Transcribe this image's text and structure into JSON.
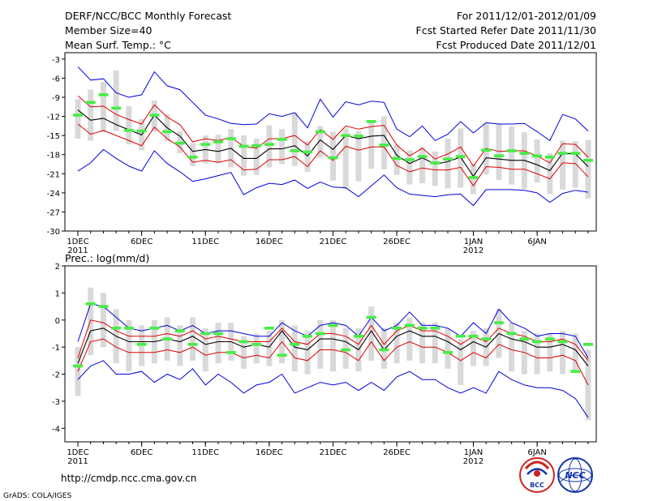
{
  "header": {
    "title": "DERF/NCC/BCC Monthly Forecast",
    "member_size": "Member Size=40",
    "variable": "Mean Surf. Temp.: °C",
    "period": "For 2011/12/01-2012/01/09",
    "fcst_started": "Fcst Started Refer Date 2011/11/30",
    "fcst_produced": "Fcst Produced Date 2011/12/01"
  },
  "footer": {
    "url": "http://cmdp.ncc.cma.gov.cn",
    "grads": "GrADS: COLA/IGES",
    "logo1_text": "BCC",
    "logo2_text": "NCC"
  },
  "colors": {
    "envelope": "#0000dd",
    "spread": "#dd0000",
    "mean": "#000000",
    "member_box": "#d9d9d9",
    "observed": "#44ee44"
  },
  "chart_data": [
    {
      "type": "line",
      "title": "Mean Surf. Temp.: °C",
      "xlabel": "",
      "ylabel": "",
      "ylim": [
        -30,
        -2
      ],
      "yticks": [
        -3,
        -6,
        -9,
        -12,
        -15,
        -18,
        -21,
        -24,
        -27,
        -30
      ],
      "yticklabels": [
        "-3",
        "-6",
        "-9",
        "-12",
        "-15",
        "-18",
        "-21",
        "-24",
        "-27",
        "-30"
      ],
      "x_days": 40,
      "xticks": [
        {
          "day": 1,
          "label": "1DEC",
          "sublabel": "2011"
        },
        {
          "day": 6,
          "label": "6DEC",
          "sublabel": ""
        },
        {
          "day": 11,
          "label": "11DEC",
          "sublabel": ""
        },
        {
          "day": 16,
          "label": "16DEC",
          "sublabel": ""
        },
        {
          "day": 21,
          "label": "21DEC",
          "sublabel": ""
        },
        {
          "day": 26,
          "label": "26DEC",
          "sublabel": ""
        },
        {
          "day": 32,
          "label": "1JAN",
          "sublabel": "2012"
        },
        {
          "day": 37,
          "label": "6JAN",
          "sublabel": ""
        }
      ],
      "series": [
        {
          "name": "max",
          "color": "#0000dd",
          "values": [
            -4.2,
            -6.3,
            -6.1,
            -8.3,
            -9.0,
            -8.6,
            -5.0,
            -7.2,
            -7.8,
            -9.8,
            -11.8,
            -12.4,
            -13.1,
            -13.3,
            -13.2,
            -11.6,
            -12.0,
            -11.4,
            -13.8,
            -9.3,
            -12.1,
            -9.7,
            -10.2,
            -9.6,
            -9.8,
            -14.0,
            -15.2,
            -13.5,
            -15.8,
            -14.8,
            -12.8,
            -14.6,
            -13.0,
            -13.2,
            -13.2,
            -13.1,
            -14.4,
            -15.8,
            -11.7,
            -12.4,
            -14.3
          ]
        },
        {
          "name": "upper",
          "color": "#dd0000",
          "values": [
            -8.8,
            -10.5,
            -10.4,
            -11.7,
            -12.5,
            -13.2,
            -10.2,
            -12.1,
            -13.3,
            -16.0,
            -15.5,
            -15.8,
            -15.3,
            -16.7,
            -17.0,
            -15.5,
            -15.5,
            -15.0,
            -16.5,
            -14.1,
            -15.6,
            -13.5,
            -14.0,
            -13.6,
            -13.4,
            -16.5,
            -18.2,
            -17.0,
            -18.7,
            -17.9,
            -16.8,
            -19.8,
            -17.0,
            -17.5,
            -17.4,
            -17.4,
            -18.2,
            -19.3,
            -16.3,
            -16.4,
            -18.4
          ]
        },
        {
          "name": "mean",
          "color": "#000000",
          "values": [
            -11.0,
            -12.6,
            -12.3,
            -13.3,
            -14.1,
            -14.9,
            -11.8,
            -13.8,
            -15.1,
            -17.5,
            -17.2,
            -17.5,
            -17.0,
            -18.6,
            -18.6,
            -17.1,
            -17.1,
            -16.6,
            -18.2,
            -15.7,
            -17.2,
            -15.0,
            -15.5,
            -15.1,
            -15.0,
            -18.1,
            -19.4,
            -18.5,
            -19.5,
            -19.1,
            -18.4,
            -21.4,
            -18.5,
            -18.7,
            -18.9,
            -18.9,
            -19.6,
            -20.5,
            -17.8,
            -17.9,
            -19.9
          ]
        },
        {
          "name": "lower",
          "color": "#dd0000",
          "values": [
            -13.2,
            -14.8,
            -14.2,
            -15.0,
            -15.8,
            -16.6,
            -13.7,
            -15.5,
            -16.8,
            -19.2,
            -18.9,
            -19.2,
            -18.8,
            -20.4,
            -20.3,
            -18.8,
            -18.8,
            -18.3,
            -19.9,
            -17.4,
            -18.9,
            -16.7,
            -17.3,
            -16.8,
            -16.8,
            -19.7,
            -20.7,
            -20.1,
            -20.4,
            -20.4,
            -20.0,
            -22.9,
            -19.9,
            -20.0,
            -20.3,
            -20.3,
            -21.0,
            -21.8,
            -19.3,
            -19.4,
            -21.5
          ]
        },
        {
          "name": "min",
          "color": "#0000dd",
          "values": [
            -20.6,
            -19.3,
            -17.2,
            -18.6,
            -19.8,
            -20.6,
            -17.4,
            -19.4,
            -20.7,
            -22.2,
            -21.8,
            -21.3,
            -20.8,
            -24.3,
            -23.2,
            -22.5,
            -22.7,
            -22.0,
            -23.3,
            -22.3,
            -23.1,
            -23.2,
            -24.6,
            -22.9,
            -21.2,
            -23.2,
            -24.2,
            -24.4,
            -24.6,
            -24.3,
            -24.2,
            -26.0,
            -23.5,
            -23.5,
            -23.5,
            -23.6,
            -24.0,
            -25.5,
            -24.1,
            -23.6,
            -23.9
          ]
        }
      ],
      "boxes": [
        [
          -15.5,
          -9.3
        ],
        [
          -15.8,
          -7.8
        ],
        [
          -14.5,
          -6.6
        ],
        [
          -14.3,
          -4.8
        ],
        [
          -16.4,
          -10.4
        ],
        [
          -17.3,
          -12.4
        ],
        [
          -14.4,
          -9.5
        ],
        [
          -15.9,
          -11.7
        ],
        [
          -17.8,
          -14.3
        ],
        [
          -19.8,
          -16.2
        ],
        [
          -19.4,
          -15.0
        ],
        [
          -19.4,
          -14.9
        ],
        [
          -20.0,
          -14.0
        ],
        [
          -21.3,
          -15.0
        ],
        [
          -21.2,
          -15.5
        ],
        [
          -20.0,
          -13.4
        ],
        [
          -19.5,
          -14.0
        ],
        [
          -19.8,
          -11.4
        ],
        [
          -20.7,
          -15.9
        ],
        [
          -18.5,
          -13.5
        ],
        [
          -22.1,
          -14.4
        ],
        [
          -23.4,
          -13.9
        ],
        [
          -22.2,
          -14.3
        ],
        [
          -20.2,
          -12.8
        ],
        [
          -20.3,
          -12.0
        ],
        [
          -21.2,
          -16.4
        ],
        [
          -22.7,
          -17.3
        ],
        [
          -22.5,
          -16.8
        ],
        [
          -22.9,
          -17.5
        ],
        [
          -23.3,
          -15.5
        ],
        [
          -23.2,
          -13.9
        ],
        [
          -24.2,
          -19.5
        ],
        [
          -21.1,
          -13.1
        ],
        [
          -22.0,
          -13.1
        ],
        [
          -22.7,
          -13.6
        ],
        [
          -23.4,
          -14.5
        ],
        [
          -22.4,
          -15.6
        ],
        [
          -24.2,
          -17.8
        ],
        [
          -23.5,
          -15.8
        ],
        [
          -23.2,
          -15.9
        ],
        [
          -24.9,
          -15.7
        ]
      ],
      "observed": [
        -11.8,
        -9.8,
        -8.6,
        -10.7,
        -14.2,
        -14.3,
        -11.8,
        -14.4,
        -16.2,
        -18.4,
        -16.4,
        -16.0,
        -15.5,
        -16.7,
        -16.6,
        -16.4,
        -15.6,
        -17.4,
        -17.6,
        -14.4,
        -18.5,
        -15.0,
        -15.1,
        -12.8,
        -16.5,
        -18.6,
        -18.8,
        -18.3,
        -19.3,
        -18.7,
        -18.3,
        -21.6,
        -17.3,
        -18.2,
        -17.4,
        -17.8,
        -18.2,
        -18.4,
        -17.8,
        -17.8,
        -18.9
      ]
    },
    {
      "type": "line",
      "title": "Prec.: log(mm/d)",
      "xlabel": "",
      "ylabel": "",
      "ylim": [
        -4.5,
        2
      ],
      "yticks": [
        2,
        1,
        0,
        -1,
        -2,
        -3,
        -4
      ],
      "yticklabels": [
        "2",
        "1",
        "0",
        "-1",
        "-2",
        "-3",
        "-4"
      ],
      "x_days": 40,
      "xticks": [
        {
          "day": 1,
          "label": "1DEC",
          "sublabel": "2011"
        },
        {
          "day": 6,
          "label": "6DEC",
          "sublabel": ""
        },
        {
          "day": 11,
          "label": "11DEC",
          "sublabel": ""
        },
        {
          "day": 16,
          "label": "16DEC",
          "sublabel": ""
        },
        {
          "day": 21,
          "label": "21DEC",
          "sublabel": ""
        },
        {
          "day": 26,
          "label": "26DEC",
          "sublabel": ""
        },
        {
          "day": 32,
          "label": "1JAN",
          "sublabel": "2012"
        },
        {
          "day": 37,
          "label": "6JAN",
          "sublabel": ""
        }
      ],
      "series": [
        {
          "name": "max",
          "color": "#0000dd",
          "values": [
            -0.8,
            0.6,
            0.5,
            0.1,
            -0.3,
            -0.4,
            -0.3,
            -0.2,
            -0.4,
            -0.2,
            -0.5,
            -0.4,
            -0.4,
            -0.5,
            -0.6,
            -0.6,
            -0.1,
            -0.4,
            -0.6,
            -0.2,
            -0.1,
            -0.2,
            -0.6,
            0.1,
            -0.4,
            -0.2,
            0.3,
            -0.2,
            -0.2,
            -0.3,
            -0.6,
            -0.1,
            -0.5,
            0.4,
            -0.1,
            -0.3,
            -0.6,
            -0.5,
            -0.5,
            -0.6,
            -1.4
          ]
        },
        {
          "name": "upper",
          "color": "#dd0000",
          "values": [
            -1.4,
            0.0,
            -0.1,
            -0.4,
            -0.6,
            -0.6,
            -0.6,
            -0.5,
            -0.6,
            -0.4,
            -0.7,
            -0.6,
            -0.7,
            -0.8,
            -0.8,
            -0.8,
            -0.3,
            -0.8,
            -0.9,
            -0.5,
            -0.5,
            -0.6,
            -0.9,
            -0.2,
            -0.9,
            -0.4,
            -0.2,
            -0.4,
            -0.4,
            -0.6,
            -0.9,
            -0.6,
            -0.8,
            -0.3,
            -0.5,
            -0.6,
            -0.8,
            -0.8,
            -0.7,
            -0.9,
            -1.5
          ]
        },
        {
          "name": "mean",
          "color": "#000000",
          "values": [
            -1.6,
            -0.4,
            -0.3,
            -0.6,
            -0.8,
            -0.8,
            -0.8,
            -0.7,
            -0.8,
            -0.6,
            -0.9,
            -0.8,
            -0.8,
            -1.0,
            -0.9,
            -1.0,
            -0.4,
            -1.0,
            -1.1,
            -0.7,
            -0.7,
            -0.8,
            -1.1,
            -0.4,
            -1.1,
            -0.6,
            -0.4,
            -0.6,
            -0.6,
            -0.8,
            -1.1,
            -0.8,
            -1.0,
            -0.5,
            -0.7,
            -0.8,
            -1.0,
            -1.0,
            -0.9,
            -1.1,
            -1.7
          ]
        },
        {
          "name": "lower",
          "color": "#dd0000",
          "values": [
            -1.9,
            -0.8,
            -0.7,
            -1.0,
            -1.2,
            -1.2,
            -1.2,
            -1.1,
            -1.2,
            -1.0,
            -1.3,
            -1.2,
            -1.2,
            -1.4,
            -1.3,
            -1.4,
            -0.8,
            -1.4,
            -1.5,
            -1.1,
            -1.1,
            -1.2,
            -1.5,
            -0.8,
            -1.5,
            -1.0,
            -0.8,
            -1.0,
            -1.0,
            -1.2,
            -1.5,
            -1.2,
            -1.4,
            -0.9,
            -1.1,
            -1.2,
            -1.4,
            -1.4,
            -1.3,
            -1.5,
            -2.4
          ]
        },
        {
          "name": "min",
          "color": "#0000dd",
          "values": [
            -2.2,
            -1.7,
            -1.5,
            -2.0,
            -2.0,
            -1.9,
            -2.3,
            -2.0,
            -2.2,
            -1.8,
            -2.4,
            -2.0,
            -2.3,
            -2.7,
            -2.4,
            -2.3,
            -2.0,
            -2.7,
            -2.5,
            -2.3,
            -2.4,
            -2.3,
            -2.6,
            -2.3,
            -2.6,
            -2.1,
            -1.9,
            -2.2,
            -2.2,
            -2.5,
            -2.7,
            -2.5,
            -2.7,
            -1.9,
            -2.2,
            -2.4,
            -2.5,
            -2.5,
            -2.6,
            -2.9,
            -3.6
          ]
        }
      ],
      "boxes": [
        [
          -2.8,
          -1.0
        ],
        [
          -1.3,
          1.2
        ],
        [
          -1.0,
          1.0
        ],
        [
          -1.6,
          0.4
        ],
        [
          -1.9,
          0.0
        ],
        [
          -1.7,
          -0.2
        ],
        [
          -1.6,
          0.0
        ],
        [
          -1.5,
          0.1
        ],
        [
          -1.7,
          -0.2
        ],
        [
          -1.5,
          0.1
        ],
        [
          -1.9,
          -0.3
        ],
        [
          -1.6,
          -0.1
        ],
        [
          -1.5,
          -0.1
        ],
        [
          -1.8,
          -0.6
        ],
        [
          -1.6,
          -0.5
        ],
        [
          -1.7,
          -0.4
        ],
        [
          -1.6,
          0.0
        ],
        [
          -1.9,
          -0.2
        ],
        [
          -2.0,
          -0.4
        ],
        [
          -1.8,
          0.0
        ],
        [
          -1.9,
          0.0
        ],
        [
          -1.8,
          -0.3
        ],
        [
          -1.9,
          -0.3
        ],
        [
          -1.5,
          0.5
        ],
        [
          -1.8,
          -0.3
        ],
        [
          -1.6,
          -0.1
        ],
        [
          -1.5,
          0.1
        ],
        [
          -1.6,
          -0.1
        ],
        [
          -1.6,
          -0.1
        ],
        [
          -1.8,
          -0.3
        ],
        [
          -2.4,
          -0.7
        ],
        [
          -1.7,
          -0.4
        ],
        [
          -1.7,
          -0.3
        ],
        [
          -1.4,
          0.4
        ],
        [
          -1.9,
          -0.1
        ],
        [
          -2.0,
          -0.4
        ],
        [
          -2.0,
          -0.5
        ],
        [
          -1.9,
          -0.5
        ],
        [
          -2.0,
          -0.4
        ],
        [
          -1.9,
          -0.5
        ],
        [
          -3.7,
          -1.1
        ]
      ],
      "observed": [
        -1.7,
        0.6,
        0.5,
        -0.3,
        -0.3,
        -0.9,
        -0.3,
        -0.7,
        -0.4,
        -0.9,
        -0.5,
        -0.5,
        -1.2,
        -0.8,
        -0.9,
        -0.3,
        -1.3,
        -0.9,
        -0.6,
        -0.5,
        -0.2,
        -1.1,
        -0.6,
        0.1,
        -1.1,
        -0.3,
        -0.2,
        -0.3,
        -0.3,
        -1.2,
        -0.6,
        -0.6,
        -0.7,
        -0.1,
        -0.5,
        -0.7,
        -0.8,
        -0.7,
        -0.8,
        -1.9,
        -0.9
      ]
    }
  ]
}
